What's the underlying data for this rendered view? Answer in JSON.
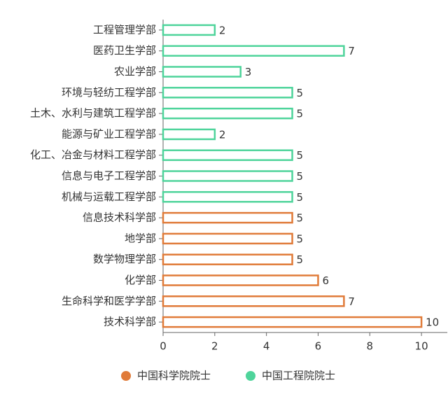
{
  "chart_data": {
    "type": "bar",
    "orientation": "horizontal",
    "categories": [
      "工程管理学部",
      "医药卫生学部",
      "农业学部",
      "环境与轻纺工程学部",
      "土木、水利与建筑工程学部",
      "能源与矿业工程学部",
      "化工、冶金与材料工程学部",
      "信息与电子工程学部",
      "机械与运载工程学部",
      "信息技术科学部",
      "地学部",
      "数学物理学部",
      "化学部",
      "生命科学和医学学部",
      "技术科学部"
    ],
    "series": [
      {
        "name": "中国科学院院士",
        "color": "#e07b39",
        "values": [
          null,
          null,
          null,
          null,
          null,
          null,
          null,
          null,
          null,
          5,
          5,
          5,
          6,
          7,
          10
        ]
      },
      {
        "name": "中国工程院院士",
        "color": "#4fd49b",
        "values": [
          2,
          7,
          3,
          5,
          5,
          2,
          5,
          5,
          5,
          null,
          null,
          null,
          null,
          null,
          null
        ]
      }
    ],
    "xlim": [
      0,
      11
    ],
    "xticks": [
      0,
      2,
      4,
      6,
      8,
      10
    ]
  }
}
